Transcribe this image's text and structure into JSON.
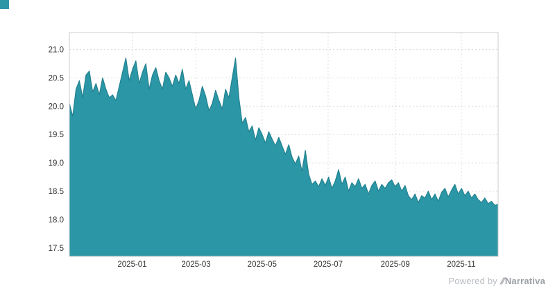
{
  "branding": {
    "powered_by": "Powered by",
    "brand": "Narrativa",
    "logo_glyph": "⫽"
  },
  "colors": {
    "area_fill": "#2b97a6",
    "area_stroke": "#23818f",
    "grid": "#dcdcdc",
    "axis_border": "#cccccc",
    "tick_text": "#333333",
    "background": "#ffffff",
    "corner_square": "#2b97a6"
  },
  "chart_data": {
    "type": "area",
    "title": "",
    "xlabel": "",
    "ylabel": "",
    "legend": "none",
    "grid": "dotted",
    "x_start": "2024-11-04",
    "x_end": "2025-12-05",
    "x_ticks": [
      {
        "label": "2025-01",
        "date": "2025-01-01"
      },
      {
        "label": "2025-03",
        "date": "2025-03-01"
      },
      {
        "label": "2025-05",
        "date": "2025-05-01"
      },
      {
        "label": "2025-07",
        "date": "2025-07-01"
      },
      {
        "label": "2025-09",
        "date": "2025-09-01"
      },
      {
        "label": "2025-11",
        "date": "2025-11-01"
      }
    ],
    "y_ticks": [
      17.5,
      18.0,
      18.5,
      19.0,
      19.5,
      20.0,
      20.5,
      21.0
    ],
    "y_range": [
      17.35,
      21.3
    ],
    "sampling": "values evenly spaced in time between x_start and x_end",
    "values": [
      20.05,
      19.82,
      20.3,
      20.45,
      20.15,
      20.55,
      20.62,
      20.25,
      20.4,
      20.2,
      20.5,
      20.3,
      20.15,
      20.2,
      20.1,
      20.35,
      20.6,
      20.85,
      20.45,
      20.65,
      20.8,
      20.4,
      20.6,
      20.75,
      20.3,
      20.55,
      20.68,
      20.45,
      20.3,
      20.6,
      20.5,
      20.35,
      20.55,
      20.4,
      20.65,
      20.3,
      20.45,
      20.2,
      19.95,
      20.1,
      20.35,
      20.18,
      19.92,
      20.05,
      20.28,
      20.1,
      19.95,
      20.3,
      20.15,
      20.5,
      20.85,
      20.15,
      19.7,
      19.8,
      19.55,
      19.65,
      19.4,
      19.62,
      19.5,
      19.35,
      19.55,
      19.42,
      19.3,
      19.45,
      19.3,
      19.15,
      19.32,
      19.1,
      18.98,
      19.12,
      18.85,
      19.22,
      18.8,
      18.62,
      18.68,
      18.58,
      18.72,
      18.6,
      18.75,
      18.55,
      18.68,
      18.88,
      18.62,
      18.75,
      18.5,
      18.65,
      18.58,
      18.72,
      18.55,
      18.62,
      18.45,
      18.6,
      18.68,
      18.5,
      18.62,
      18.55,
      18.65,
      18.7,
      18.58,
      18.65,
      18.5,
      18.6,
      18.42,
      18.35,
      18.45,
      18.3,
      18.42,
      18.38,
      18.5,
      18.35,
      18.45,
      18.32,
      18.48,
      18.55,
      18.4,
      18.52,
      18.62,
      18.45,
      18.55,
      18.42,
      18.5,
      18.38,
      18.45,
      18.35,
      18.3,
      18.38,
      18.28,
      18.32,
      18.25,
      18.27
    ]
  }
}
